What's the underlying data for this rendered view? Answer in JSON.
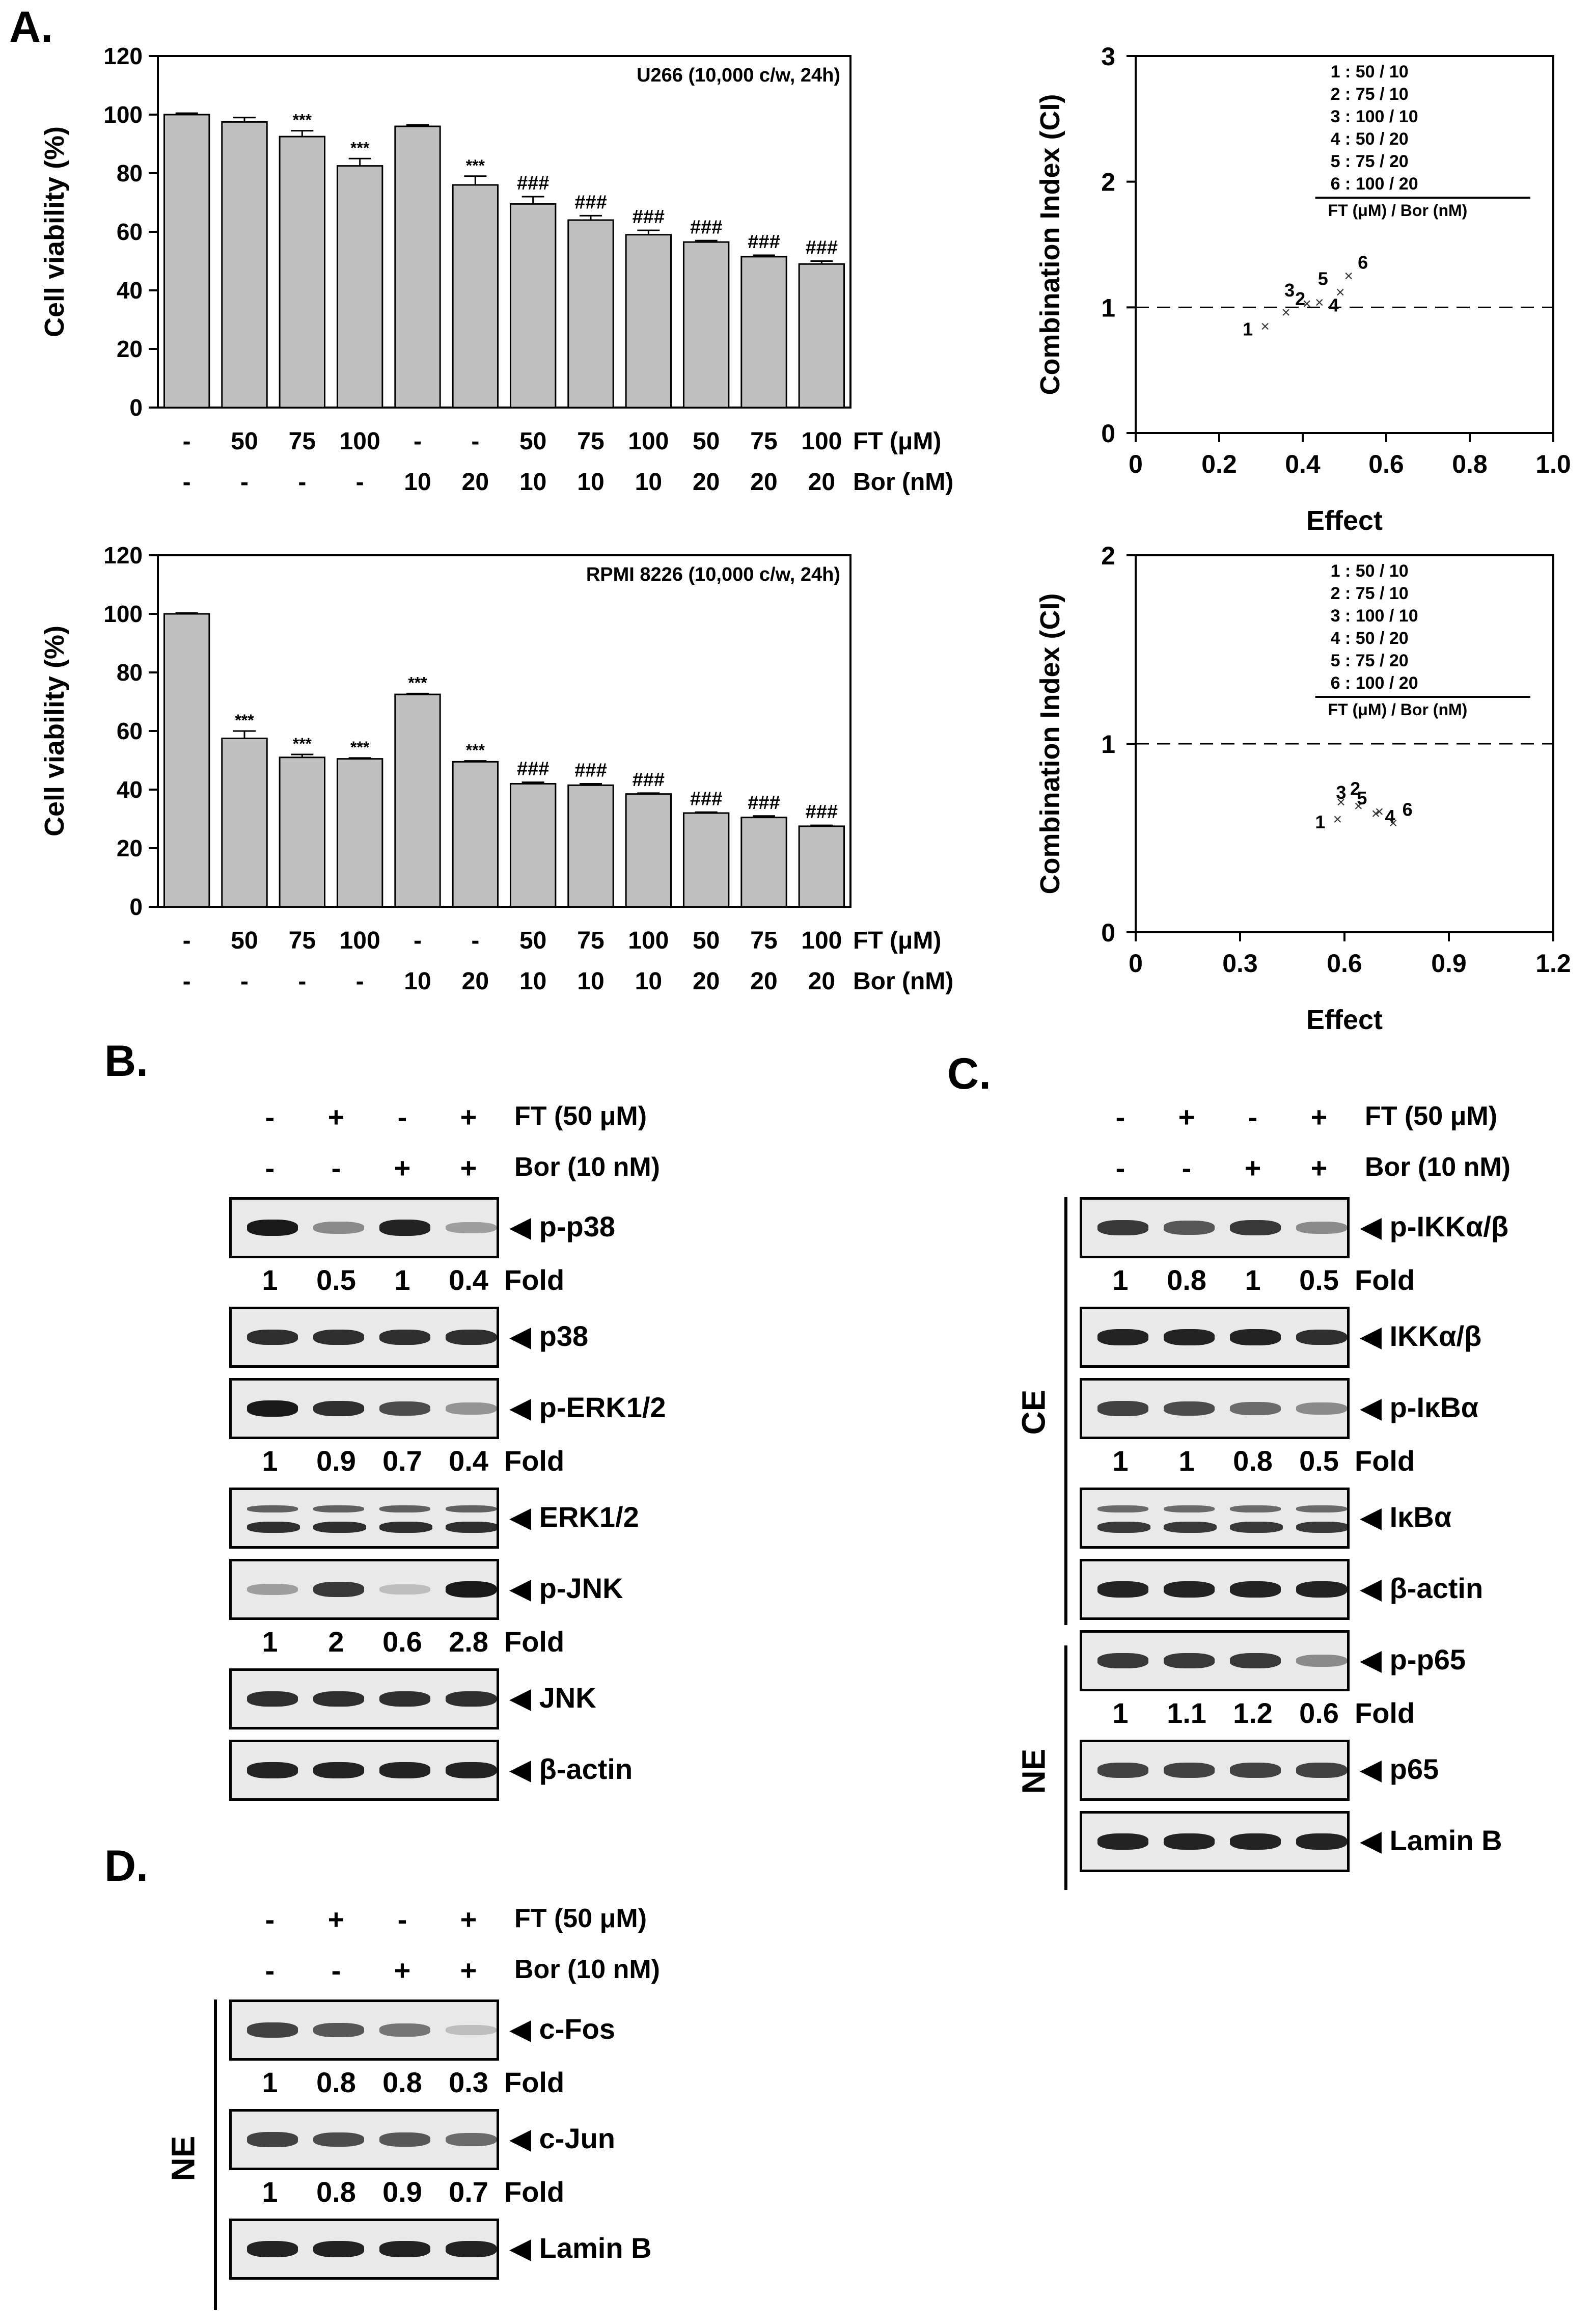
{
  "panel_labels": {
    "a": "A.",
    "b": "B.",
    "c": "C.",
    "d": "D."
  },
  "chart_data": [
    {
      "type": "bar",
      "title": "U266 (10,000 c/w, 24h)",
      "ylabel": "Cell viability (%)",
      "ylim": [
        0,
        120
      ],
      "yticks": [
        0,
        20,
        40,
        60,
        80,
        100,
        120
      ],
      "ft_row": [
        "-",
        "50",
        "75",
        "100",
        "-",
        "-",
        "50",
        "75",
        "100",
        "50",
        "75",
        "100"
      ],
      "bor_row": [
        "-",
        "-",
        "-",
        "-",
        "10",
        "20",
        "10",
        "10",
        "10",
        "20",
        "20",
        "20"
      ],
      "ft_label": "FT (μM)",
      "bor_label": "Bor (nM)",
      "values": [
        100,
        97.5,
        92.5,
        82.5,
        96,
        76,
        69.5,
        64,
        59,
        56.5,
        51.5,
        49
      ],
      "errors": [
        0.5,
        1.5,
        2,
        2.5,
        0.5,
        3,
        2.5,
        1.5,
        1.5,
        0.5,
        0.5,
        1
      ],
      "annotations": [
        "",
        "",
        "***",
        "***",
        "",
        "***",
        "###",
        "###",
        "###",
        "###",
        "###",
        "###"
      ]
    },
    {
      "type": "scatter",
      "ylabel": "Combination Index (CI)",
      "xlabel": "Effect",
      "xlim": [
        0,
        1.0
      ],
      "ylim": [
        0,
        3
      ],
      "xticks": [
        "0",
        "0.2",
        "0.4",
        "0.6",
        "0.8",
        "1.0"
      ],
      "yticks": [
        "0",
        "1",
        "2",
        "3"
      ],
      "reference_line_y": 1,
      "points": [
        {
          "label": "1",
          "x": 0.31,
          "y": 0.85
        },
        {
          "label": "2",
          "x": 0.36,
          "y": 0.96
        },
        {
          "label": "3",
          "x": 0.41,
          "y": 1.03
        },
        {
          "label": "4",
          "x": 0.44,
          "y": 1.04
        },
        {
          "label": "5",
          "x": 0.49,
          "y": 1.12
        },
        {
          "label": "6",
          "x": 0.51,
          "y": 1.25
        }
      ],
      "legend_items": [
        "1 : 50 / 10",
        "2 : 75 / 10",
        "3 : 100 / 10",
        "4 : 50 / 20",
        "5 : 75 / 20",
        "6 : 100 / 20"
      ],
      "legend_footer": "FT (μM) / Bor (nM)"
    },
    {
      "type": "bar",
      "title": "RPMI 8226 (10,000 c/w, 24h)",
      "ylabel": "Cell viability (%)",
      "ylim": [
        0,
        120
      ],
      "yticks": [
        0,
        20,
        40,
        60,
        80,
        100,
        120
      ],
      "ft_row": [
        "-",
        "50",
        "75",
        "100",
        "-",
        "-",
        "50",
        "75",
        "100",
        "50",
        "75",
        "100"
      ],
      "bor_row": [
        "-",
        "-",
        "-",
        "-",
        "10",
        "20",
        "10",
        "10",
        "10",
        "20",
        "20",
        "20"
      ],
      "ft_label": "FT (μM)",
      "bor_label": "Bor (nM)",
      "values": [
        100,
        57.5,
        51,
        50.5,
        72.5,
        49.5,
        42,
        41.5,
        38.5,
        32,
        30.5,
        27.5
      ],
      "errors": [
        0.3,
        2.5,
        1,
        0.3,
        0.3,
        0.3,
        0.5,
        0.5,
        0.3,
        0.3,
        0.5,
        0.3
      ],
      "annotations": [
        "",
        "***",
        "***",
        "***",
        "***",
        "***",
        "###",
        "###",
        "###",
        "###",
        "###",
        "###"
      ]
    },
    {
      "type": "scatter",
      "ylabel": "Combination Index (CI)",
      "xlabel": "Effect",
      "xlim": [
        0,
        1.2
      ],
      "ylim": [
        0,
        2
      ],
      "xticks": [
        "0",
        "0.3",
        "0.6",
        "0.9",
        "1.2"
      ],
      "yticks": [
        "0",
        "1",
        "2"
      ],
      "reference_line_y": 1,
      "points": [
        {
          "label": "1",
          "x": 0.58,
          "y": 0.6
        },
        {
          "label": "2",
          "x": 0.59,
          "y": 0.69
        },
        {
          "label": "3",
          "x": 0.64,
          "y": 0.67
        },
        {
          "label": "4",
          "x": 0.69,
          "y": 0.63
        },
        {
          "label": "5",
          "x": 0.7,
          "y": 0.64
        },
        {
          "label": "6",
          "x": 0.74,
          "y": 0.58
        }
      ],
      "legend_items": [
        "1 : 50 / 10",
        "2 : 75 / 10",
        "3 : 100 / 10",
        "4 : 50 / 20",
        "5 : 75 / 20",
        "6 : 100 / 20"
      ],
      "legend_footer": "FT (μM) / Bor (nM)"
    }
  ],
  "blots": {
    "ft_label": "FT (50 μM)",
    "bor_label": "Bor (10 nM)",
    "ft_signs": [
      "-",
      "+",
      "-",
      "+"
    ],
    "bor_signs": [
      "-",
      "-",
      "+",
      "+"
    ],
    "fold_label": "Fold",
    "b": {
      "bands": [
        {
          "label": "◀ p-p38",
          "intensity": [
            1.0,
            0.45,
            0.95,
            0.35
          ],
          "fold": [
            "1",
            "0.5",
            "1",
            "0.4"
          ]
        },
        {
          "label": "◀ p38",
          "intensity": [
            0.9,
            0.9,
            0.9,
            0.9
          ]
        },
        {
          "label": "◀ p-ERK1/2",
          "intensity": [
            1.0,
            0.9,
            0.75,
            0.4
          ],
          "fold": [
            "1",
            "0.9",
            "0.7",
            "0.4"
          ]
        },
        {
          "label": "◀ ERK1/2",
          "intensity": [
            0.9,
            0.9,
            0.9,
            0.9
          ],
          "double": true
        },
        {
          "label": "◀ p-JNK",
          "intensity": [
            0.35,
            0.85,
            0.2,
            1.0
          ],
          "fold": [
            "1",
            "2",
            "0.6",
            "2.8"
          ]
        },
        {
          "label": "◀ JNK",
          "intensity": [
            0.9,
            0.9,
            0.9,
            0.9
          ]
        },
        {
          "label": "◀ β-actin",
          "intensity": [
            0.95,
            0.95,
            0.95,
            0.95
          ]
        }
      ]
    },
    "c": {
      "group_ce": "CE",
      "group_ne": "NE",
      "bands": [
        {
          "label": "◀ p-IKKα/β",
          "intensity": [
            0.85,
            0.7,
            0.85,
            0.45
          ],
          "fold": [
            "1",
            "0.8",
            "1",
            "0.5"
          ]
        },
        {
          "label": "◀ IKKα/β",
          "intensity": [
            0.95,
            0.95,
            0.95,
            0.9
          ]
        },
        {
          "label": "◀ p-IκBα",
          "intensity": [
            0.8,
            0.75,
            0.6,
            0.45
          ],
          "fold": [
            "1",
            "1",
            "0.8",
            "0.5"
          ]
        },
        {
          "label": "◀ IκBα",
          "intensity": [
            0.85,
            0.85,
            0.85,
            0.85
          ],
          "double": true
        },
        {
          "label": "◀ β-actin",
          "intensity": [
            0.95,
            0.95,
            0.95,
            0.95
          ]
        },
        {
          "label": "◀ p-p65",
          "intensity": [
            0.85,
            0.85,
            0.85,
            0.45
          ],
          "fold": [
            "1",
            "1.1",
            "1.2",
            "0.6"
          ]
        },
        {
          "label": "◀ p65",
          "intensity": [
            0.8,
            0.8,
            0.8,
            0.8
          ]
        },
        {
          "label": "◀ Lamin B",
          "intensity": [
            0.95,
            0.95,
            0.95,
            0.95
          ]
        }
      ]
    },
    "d": {
      "group_ne": "NE",
      "bands": [
        {
          "label": "◀ c-Fos",
          "intensity": [
            0.8,
            0.7,
            0.55,
            0.2
          ],
          "fold": [
            "1",
            "0.8",
            "0.8",
            "0.3"
          ]
        },
        {
          "label": "◀ c-Jun",
          "intensity": [
            0.8,
            0.75,
            0.7,
            0.6
          ],
          "fold": [
            "1",
            "0.8",
            "0.9",
            "0.7"
          ]
        },
        {
          "label": "◀ Lamin B",
          "intensity": [
            0.95,
            0.95,
            0.95,
            0.95
          ]
        }
      ]
    }
  }
}
